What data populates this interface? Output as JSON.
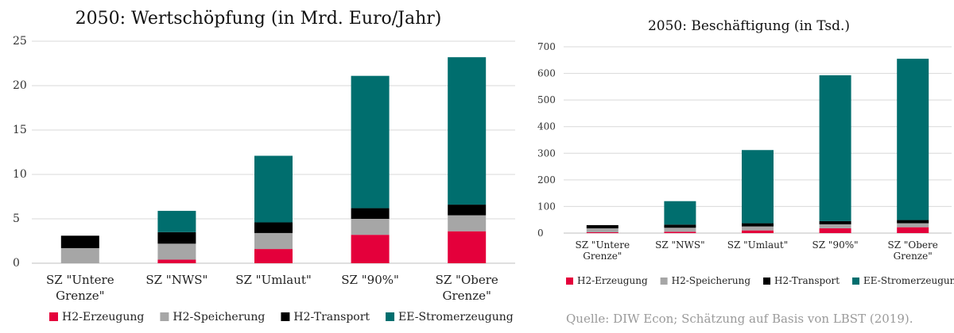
{
  "chart_data": [
    {
      "type": "bar",
      "stacked": true,
      "title": "2050: Wertschöpfung (in Mrd. Euro/Jahr)",
      "categories": [
        [
          "SZ \"Untere",
          "Grenze\""
        ],
        [
          "SZ \"NWS\""
        ],
        [
          "SZ \"Umlaut\""
        ],
        [
          "SZ \"90%\""
        ],
        [
          "SZ \"Obere",
          "Grenze\""
        ]
      ],
      "ylim": [
        0,
        25
      ],
      "yticks": [
        0,
        5,
        10,
        15,
        20,
        25
      ],
      "grid": true,
      "legend_position": "bottom",
      "series": [
        {
          "name": "H2-Erzeugung",
          "color": "#e4003b",
          "values": [
            0,
            0.4,
            1.6,
            3.2,
            3.6
          ]
        },
        {
          "name": "H2-Speicherung",
          "color": "#a6a6a6",
          "values": [
            1.7,
            1.8,
            1.8,
            1.8,
            1.8
          ]
        },
        {
          "name": "H2-Transport",
          "color": "#000000",
          "values": [
            1.4,
            1.3,
            1.2,
            1.2,
            1.2
          ]
        },
        {
          "name": "EE-Stromerzeugung",
          "color": "#006e6e",
          "values": [
            0,
            2.4,
            7.5,
            14.9,
            16.6
          ]
        }
      ]
    },
    {
      "type": "bar",
      "stacked": true,
      "title": "2050: Beschäftigung (in Tsd.)",
      "categories": [
        [
          "SZ \"Untere",
          "Grenze\""
        ],
        [
          "SZ \"NWS\""
        ],
        [
          "SZ \"Umlaut\""
        ],
        [
          "SZ \"90%\""
        ],
        [
          "SZ \"Obere",
          "Grenze\""
        ]
      ],
      "ylim": [
        0,
        700
      ],
      "yticks": [
        0,
        100,
        200,
        300,
        400,
        500,
        600,
        700
      ],
      "grid": true,
      "legend_position": "bottom",
      "series": [
        {
          "name": "H2-Erzeugung",
          "color": "#e4003b",
          "values": [
            3,
            5,
            10,
            18,
            22
          ]
        },
        {
          "name": "H2-Speicherung",
          "color": "#a6a6a6",
          "values": [
            15,
            15,
            15,
            15,
            15
          ]
        },
        {
          "name": "H2-Transport",
          "color": "#000000",
          "values": [
            12,
            12,
            12,
            12,
            12
          ]
        },
        {
          "name": "EE-Stromerzeugung",
          "color": "#006e6e",
          "values": [
            0,
            88,
            275,
            548,
            606
          ]
        }
      ]
    }
  ],
  "source": "Quelle: DIW Econ; Schätzung auf Basis von LBST (2019)."
}
